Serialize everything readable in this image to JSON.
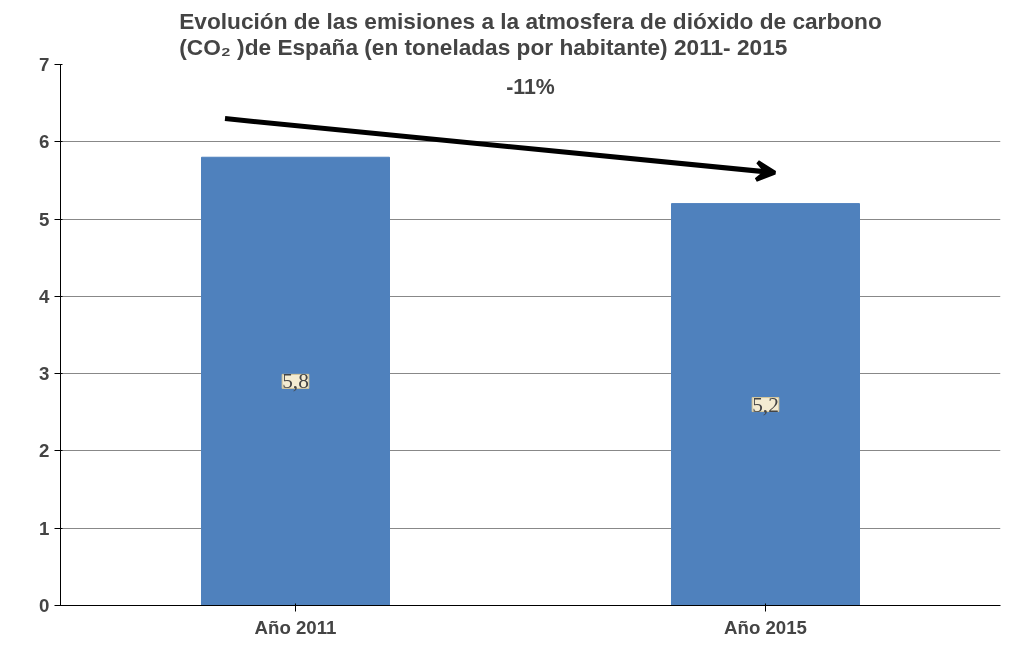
{
  "chart_data": {
    "type": "bar",
    "title": "Evolución de las emisiones a la atmosfera de dióxido de carbono\n(CO₂ )de España (en toneladas por habitante) 2011- 2015",
    "categories": [
      "Año 2011",
      "Año 2015"
    ],
    "values": [
      5.8,
      5.2
    ],
    "value_labels": [
      "5,8",
      "5,2"
    ],
    "color": "#4f81bd",
    "ylim": [
      0,
      7
    ],
    "yticks": [
      0,
      1,
      2,
      3,
      4,
      5,
      6,
      7
    ],
    "grid": "y",
    "annotations": [
      "-11%"
    ]
  }
}
